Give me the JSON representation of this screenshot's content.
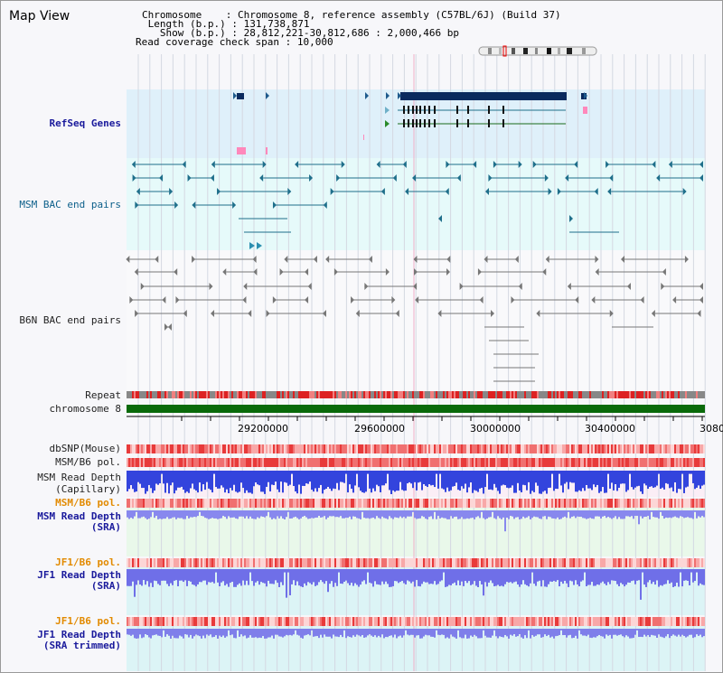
{
  "title": "Map View",
  "header": {
    "chromosome_label": "Chromosome",
    "chromosome_value": "Chromosome 8, reference assembly (C57BL/6J) (Build 37)",
    "length_label": "Length (b.p.)",
    "length_value": "131,738,871",
    "show_label": "Show (b.p.)",
    "show_value": "28,812,221-30,812,686 : 2,000,466 bp",
    "span_label": "Read coverage check span",
    "span_value": "10,000"
  },
  "tracks": {
    "refseq": "RefSeq Genes",
    "msm_bac": "MSM BAC end pairs",
    "b6n_bac": "B6N BAC end pairs",
    "repeat": "Repeat",
    "chromosome": "chromosome 8",
    "dbsnp": "dbSNP(Mouse)",
    "msm_b6_pol_1": "MSM/B6 pol.",
    "msm_read_depth_cap_1": "MSM Read Depth",
    "msm_read_depth_cap_2": "(Capillary)",
    "msm_b6_pol_2": "MSM/B6 pol.",
    "msm_read_depth_sra_1": "MSM Read Depth",
    "msm_read_depth_sra_2": "(SRA)",
    "jf1_b6_pol_1": "JF1/B6 pol.",
    "jf1_read_depth_1": "JF1 Read Depth",
    "jf1_read_depth_2": "(SRA)",
    "jf1_b6_pol_2": "JF1/B6 pol.",
    "jf1_trim_1": "JF1 Read Depth",
    "jf1_trim_2": "(SRA trimmed)"
  },
  "axis": {
    "ticks": [
      "29200000",
      "29600000",
      "30000000",
      "30400000",
      "3080"
    ]
  },
  "colors": {
    "refseq_bg": "#dff0fa",
    "msm_bg": "#e6fafa",
    "gene_dark": "#0a2a5e",
    "bac_teal": "#1f6f8b",
    "bac_gray": "#777777",
    "chrom_green": "#0a6a0a",
    "depth_blue": "#3344dd",
    "depth_light": "#8888ee",
    "pol_red": "#ee3333",
    "marker_pink": "#ff88bb"
  }
}
